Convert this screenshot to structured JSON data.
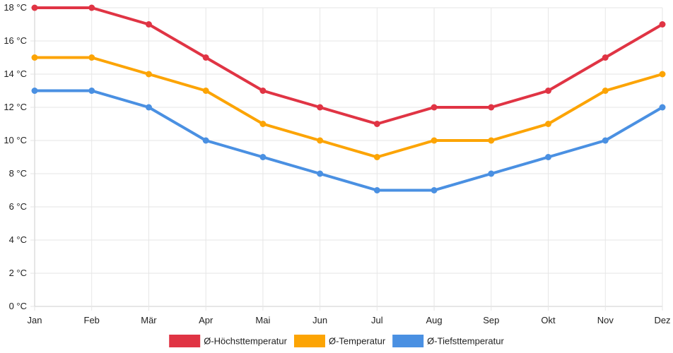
{
  "chart_data": {
    "type": "line",
    "title": "",
    "xlabel": "",
    "ylabel": "",
    "categories": [
      "Jan",
      "Feb",
      "Mär",
      "Apr",
      "Mai",
      "Jun",
      "Jul",
      "Aug",
      "Sep",
      "Okt",
      "Nov",
      "Dez"
    ],
    "ylim": [
      0,
      18
    ],
    "yticks": [
      0,
      2,
      4,
      6,
      8,
      10,
      12,
      14,
      16,
      18
    ],
    "y_unit": "°C",
    "grid": true,
    "legend_position": "bottom",
    "series": [
      {
        "name": "Ø-Höchsttemperatur",
        "color": "#e03444",
        "values": [
          18,
          18,
          17,
          15,
          13,
          12,
          11,
          12,
          12,
          13,
          15,
          17
        ]
      },
      {
        "name": "Ø-Temperatur",
        "color": "#fca404",
        "values": [
          15,
          15,
          14,
          13,
          11,
          10,
          9,
          10,
          10,
          11,
          13,
          14
        ]
      },
      {
        "name": "Ø-Tiefsttemperatur",
        "color": "#4a90e2",
        "values": [
          13,
          13,
          12,
          10,
          9,
          8,
          7,
          7,
          8,
          9,
          10,
          12
        ]
      }
    ]
  }
}
